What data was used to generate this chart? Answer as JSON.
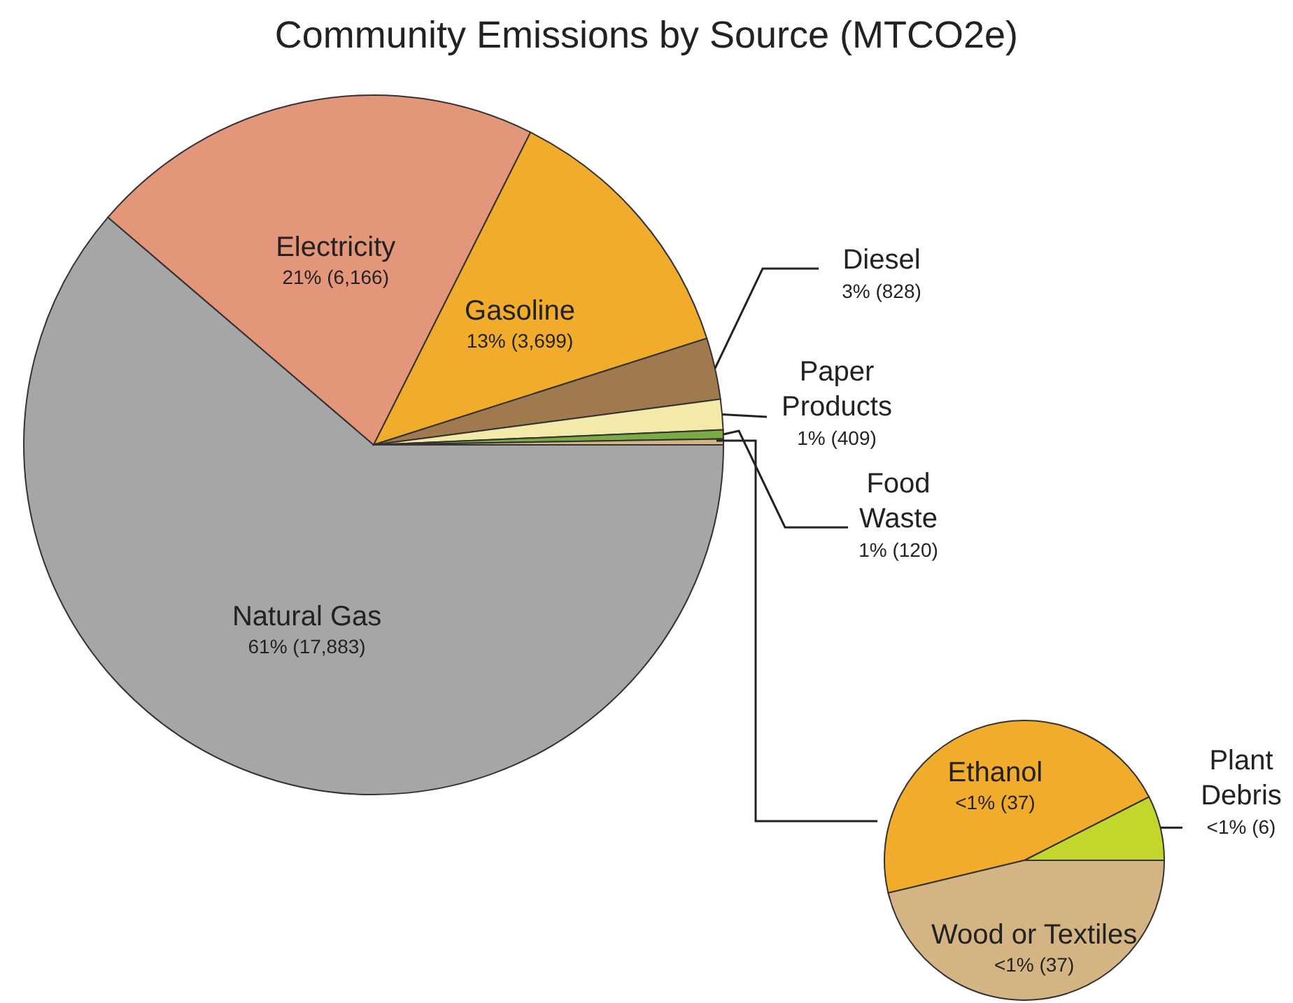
{
  "chart_data": [
    {
      "type": "pie",
      "title": "Community Emissions by Source (MTCO2e)",
      "categories": [
        "Natural Gas",
        "Electricity",
        "Gasoline",
        "Diesel",
        "Paper Products",
        "Food Waste",
        null
      ],
      "values": [
        17883,
        6166,
        3699,
        828,
        409,
        120,
        80
      ],
      "colors": [
        "#a6a6a6",
        "#e3967a",
        "#f2ac2b",
        "#a07a4e",
        "#f3e9a8",
        "#7aab45",
        "#d4b483"
      ],
      "value_labels": [
        "61% (17,883)",
        "21% (6,166)",
        "13% (3,699)",
        "3% (828)",
        "1% (409)",
        "1% (120)",
        null
      ]
    },
    {
      "type": "pie",
      "categories": [
        "Plant Debris",
        "Ethanol",
        "Wood or Textiles"
      ],
      "values": [
        6,
        37,
        37
      ],
      "colors": [
        "#c4d62c",
        "#f2ac2b",
        "#d4b483"
      ],
      "value_labels": [
        "<1% (6)",
        "<1% (37)",
        "<1% (37)"
      ]
    }
  ]
}
